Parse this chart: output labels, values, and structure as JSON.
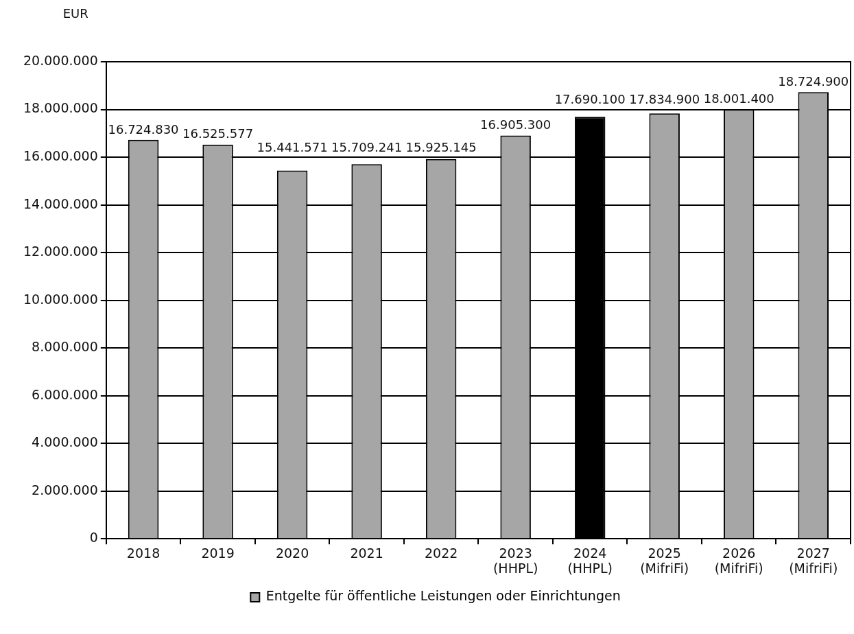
{
  "chart_data": {
    "type": "bar",
    "ylabel": "EUR",
    "categories": [
      "2018",
      "2019",
      "2020",
      "2021",
      "2022",
      "2023\n(HHPL)",
      "2024\n(HHPL)",
      "2025\n(MifriFi)",
      "2026\n(MifriFi)",
      "2027\n(MifriFi)"
    ],
    "series": [
      {
        "name": "Entgelte für öffentliche Leistungen oder Einrichtungen",
        "color": "#a6a6a6",
        "colors": [
          "#a6a6a6",
          "#a6a6a6",
          "#a6a6a6",
          "#a6a6a6",
          "#a6a6a6",
          "#a6a6a6",
          "#000000",
          "#a6a6a6",
          "#a6a6a6",
          "#a6a6a6"
        ],
        "values": [
          16724830,
          16525577,
          15441571,
          15709241,
          15925145,
          16905300,
          17690100,
          17834900,
          18001400,
          18724900
        ],
        "value_labels": [
          "16.724.830",
          "16.525.577",
          "15.441.571",
          "15.709.241",
          "15.925.145",
          "16.905.300",
          "17.690.100",
          "17.834.900",
          "18.001.400",
          "18.724.900"
        ]
      }
    ],
    "ylim": [
      0,
      20000000
    ],
    "yticks": [
      {
        "value": 0,
        "label": "0"
      },
      {
        "value": 2000000,
        "label": "2.000.000"
      },
      {
        "value": 4000000,
        "label": "4.000.000"
      },
      {
        "value": 6000000,
        "label": "6.000.000"
      },
      {
        "value": 8000000,
        "label": "8.000.000"
      },
      {
        "value": 10000000,
        "label": "10.000.000"
      },
      {
        "value": 12000000,
        "label": "12.000.000"
      },
      {
        "value": 14000000,
        "label": "14.000.000"
      },
      {
        "value": 16000000,
        "label": "16.000.000"
      },
      {
        "value": 18000000,
        "label": "18.000.000"
      },
      {
        "value": 20000000,
        "label": "20.000.000"
      }
    ],
    "grid": "y",
    "legend": "bottom"
  }
}
